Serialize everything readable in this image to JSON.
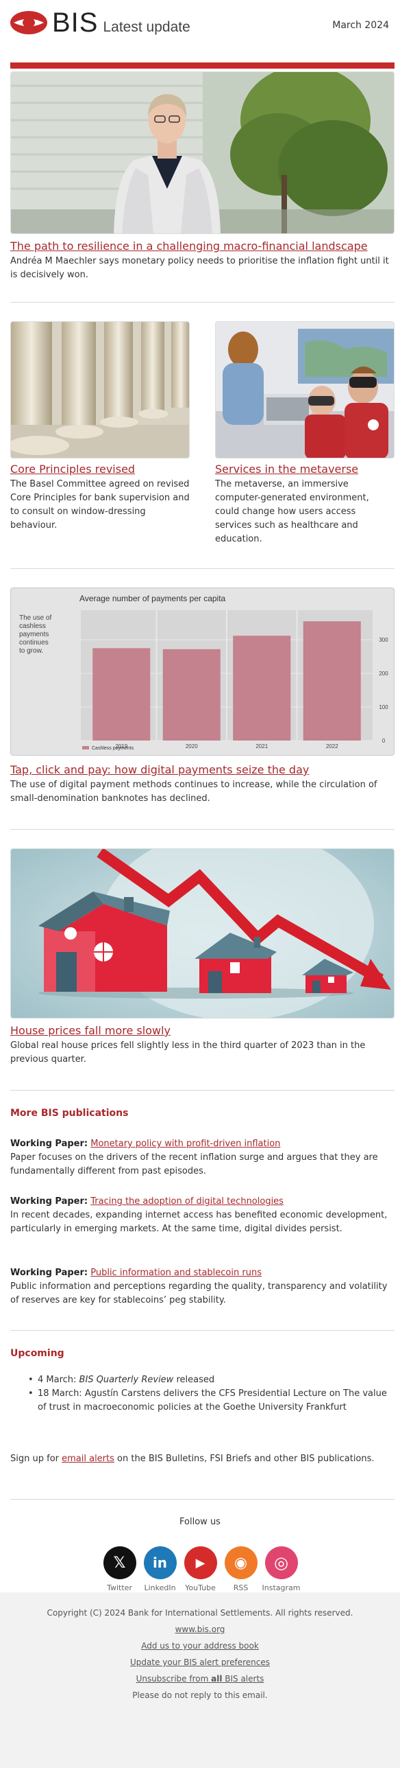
{
  "header": {
    "logo_text": "BIS",
    "subtitle": "Latest update",
    "date": "March 2024"
  },
  "hero": {
    "title": "The path to resilience in a challenging macro-financial landscape",
    "text": "Andréa M Maechler says monetary policy needs to prioritise the inflation fight until it is decisively won."
  },
  "cards": [
    {
      "title": "Core Principles revised",
      "text": "The Basel Committee agreed on revised Core Principles for bank supervision and to consult on window-dressing behaviour."
    },
    {
      "title": "Services in the metaverse",
      "text": "The metaverse, an immersive computer-generated environment, could change how users access services such as healthcare and education."
    }
  ],
  "chart_data": {
    "type": "bar",
    "title": "Average number of payments per capita",
    "side_note": "The use of cashless payments continues to grow.",
    "categories": [
      "2019",
      "2020",
      "2021",
      "2022"
    ],
    "series": [
      {
        "name": "Cashless payments",
        "values": [
          275,
          272,
          312,
          355
        ],
        "color": "#c4818e"
      }
    ],
    "yticks": [
      "0",
      "100",
      "200",
      "300"
    ],
    "ylim": [
      0,
      380
    ],
    "grid": true,
    "legend": "bottom-left"
  },
  "payments": {
    "title": "Tap, click and pay: how digital payments seize the day",
    "text": "The use of digital payment methods continues to increase, while the circulation of small-denomination banknotes has declined."
  },
  "houses": {
    "title": "House prices fall more slowly",
    "text": "Global real house prices fell slightly less in the third quarter of 2023 than in the previous quarter."
  },
  "publications": {
    "heading": "More BIS publications",
    "items": [
      {
        "kind": "Working Paper:",
        "link": "Monetary policy with profit-driven inflation",
        "text": "Paper focuses on the drivers of the recent inflation surge and argues that they are fundamentally different from past episodes."
      },
      {
        "kind": "Working Paper:",
        "link": "Tracing the adoption of digital technologies",
        "text": "In recent decades, expanding internet access has benefited economic development, particularly in emerging markets. At the same time, digital divides persist."
      },
      {
        "kind": "Working Paper:",
        "link": "Public information and stablecoin runs",
        "text": "Public information and perceptions regarding the quality, transparency and volatility of reserves are key for stablecoins’ peg stability."
      }
    ]
  },
  "upcoming": {
    "heading": "Upcoming",
    "item1_date": "4 March: ",
    "item1_em": "BIS Quarterly Review",
    "item1_rest": " released",
    "item2": "18 March: Agustín Carstens delivers the CFS Presidential Lecture on The value of trust in macroeconomic policies at the Goethe University Frankfurt"
  },
  "signup": {
    "before": "Sign up for ",
    "link": "email alerts",
    "after": " on the BIS Bulletins, FSI Briefs and other BIS publications."
  },
  "follow": {
    "heading": "Follow us",
    "items": [
      {
        "label": "Twitter",
        "icon": "x-icon",
        "glyph": "𝕏",
        "color": "#111111"
      },
      {
        "label": "LinkedIn",
        "icon": "linkedin-icon",
        "glyph": "in",
        "color": "#1f78b8"
      },
      {
        "label": "YouTube",
        "icon": "youtube-icon",
        "glyph": "▶",
        "color": "#d52b2b"
      },
      {
        "label": "RSS",
        "icon": "rss-icon",
        "glyph": "◉",
        "color": "#f07a28"
      },
      {
        "label": "Instagram",
        "icon": "instagram-icon",
        "glyph": "◎",
        "color": "#e0456f"
      }
    ]
  },
  "footer": {
    "copyright": "Copyright (C) 2024 Bank for International Settlements. All rights reserved.",
    "site": "www.bis.org",
    "address_book": "Add us to your address book",
    "preferences": "Update your BIS alert preferences",
    "unsub_before": "Unsubscribe from ",
    "unsub_bold": "all",
    "unsub_after": " BIS alerts",
    "noreply": "Please do not reply to this email."
  }
}
